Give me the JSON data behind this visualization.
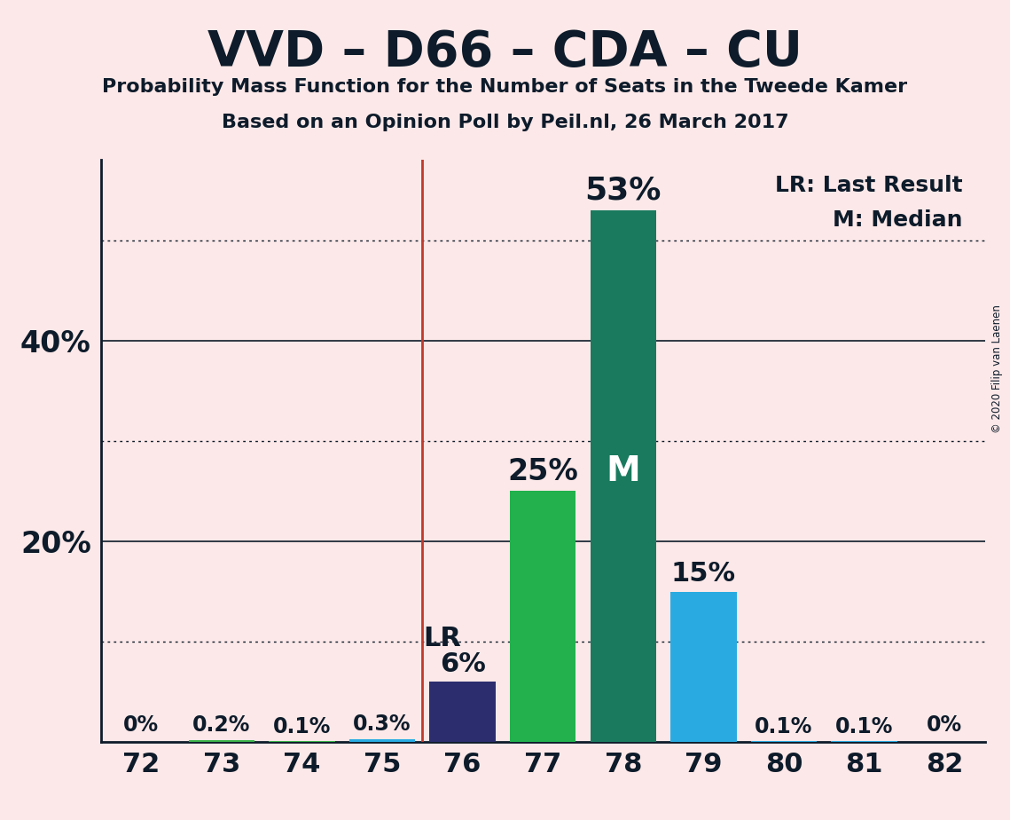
{
  "title": "VVD – D66 – CDA – CU",
  "subtitle1": "Probability Mass Function for the Number of Seats in the Tweede Kamer",
  "subtitle2": "Based on an Opinion Poll by Peil.nl, 26 March 2017",
  "copyright": "© 2020 Filip van Laenen",
  "seats": [
    72,
    73,
    74,
    75,
    76,
    77,
    78,
    79,
    80,
    81,
    82
  ],
  "values": [
    0.0,
    0.2,
    0.1,
    0.3,
    6.0,
    25.0,
    53.0,
    15.0,
    0.1,
    0.1,
    0.0
  ],
  "bar_labels": [
    "0%",
    "0.2%",
    "0.1%",
    "0.3%",
    "6%",
    "25%",
    "53%",
    "15%",
    "0.1%",
    "0.1%",
    "0%"
  ],
  "bar_colors": [
    "#3cb44b",
    "#3cb44b",
    "#3cb44b",
    "#29abe2",
    "#2b2d6e",
    "#22b14c",
    "#1a7a5e",
    "#29abe2",
    "#29abe2",
    "#29abe2",
    "#29abe2"
  ],
  "lr_x": 75.5,
  "median_bar": 78,
  "background_color": "#fce8e8",
  "axis_color": "#0d1b2a",
  "solid_gridlines": [
    20,
    40
  ],
  "dotted_gridlines": [
    10,
    30,
    50
  ],
  "bar_label_color": "#0d1b2a",
  "bar_label_color_inside": "#ffffff",
  "lr_line_color": "#c0392b",
  "xlim": [
    71.5,
    82.5
  ],
  "ylim": [
    0,
    58
  ],
  "ytick_positions": [
    20,
    40
  ],
  "ytick_labels": [
    "20%",
    "40%"
  ],
  "legend_lr": "LR: Last Result",
  "legend_m": "M: Median",
  "lr_label": "LR",
  "m_label": "M",
  "bar_width": 0.82
}
